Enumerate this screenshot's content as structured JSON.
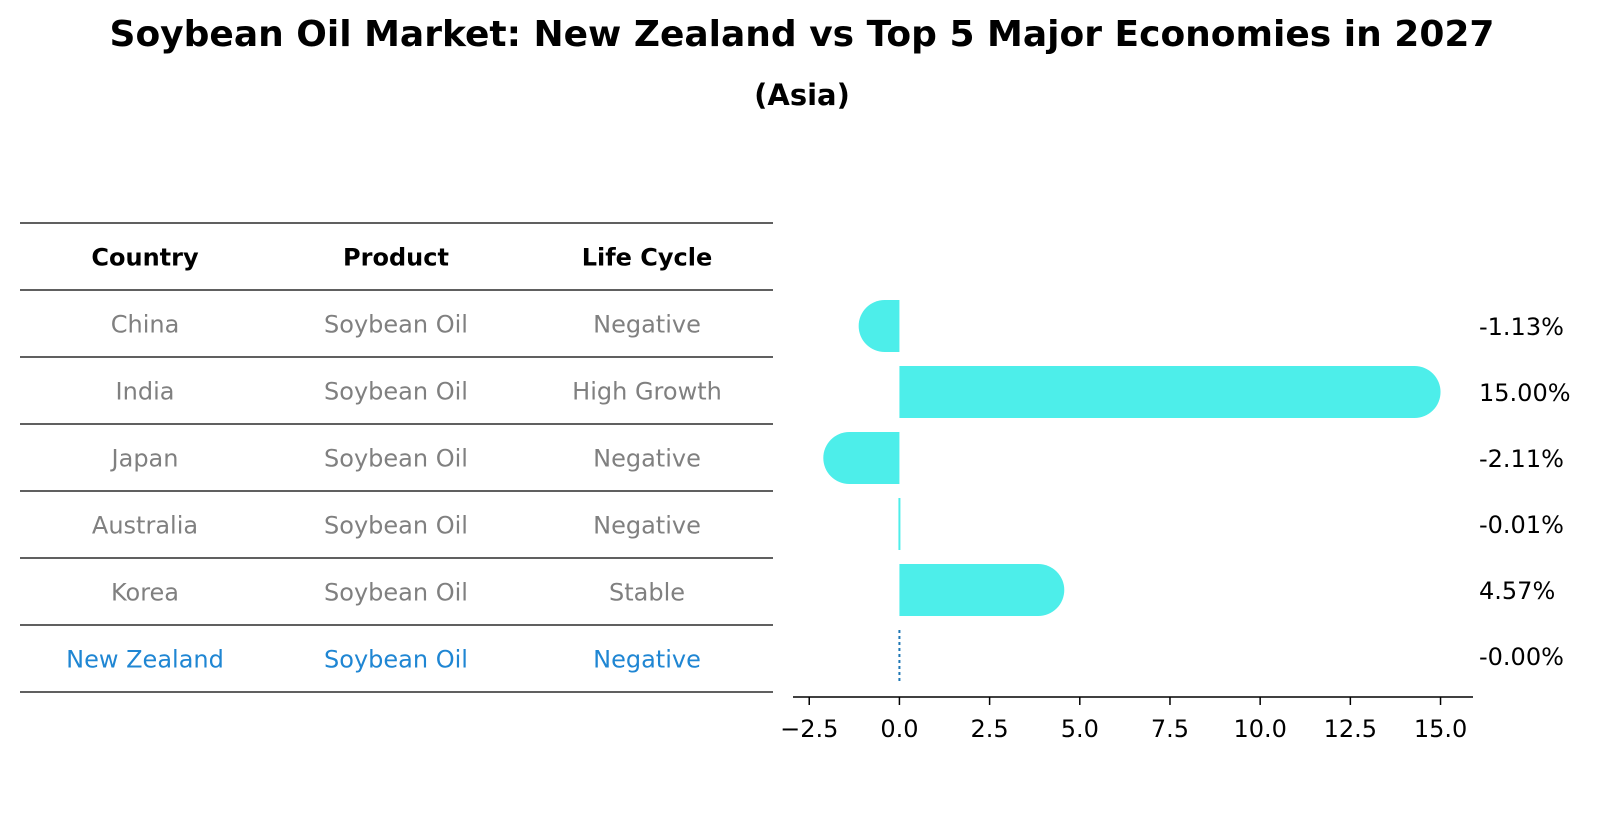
{
  "title": "Soybean Oil Market: New Zealand vs Top 5 Major Economies in 2027",
  "subtitle": "(Asia)",
  "table": {
    "headers": [
      "Country",
      "Product",
      "Life Cycle"
    ],
    "rows": [
      {
        "country": "China",
        "product": "Soybean Oil",
        "life_cycle": "Negative",
        "highlight": false
      },
      {
        "country": "India",
        "product": "Soybean Oil",
        "life_cycle": "High Growth",
        "highlight": false
      },
      {
        "country": "Japan",
        "product": "Soybean Oil",
        "life_cycle": "Negative",
        "highlight": false
      },
      {
        "country": "Australia",
        "product": "Soybean Oil",
        "life_cycle": "Negative",
        "highlight": false
      },
      {
        "country": "Korea",
        "product": "Soybean Oil",
        "life_cycle": "Stable",
        "highlight": false
      },
      {
        "country": "New Zealand",
        "product": "Soybean Oil",
        "life_cycle": "Negative",
        "highlight": true
      }
    ]
  },
  "colors": {
    "bar": "#4deeea",
    "highlight_text": "#1f86d3",
    "muted_text": "#808080",
    "zero_line": "#1f77b4"
  },
  "chart_data": {
    "type": "bar",
    "orientation": "horizontal",
    "categories": [
      "China",
      "India",
      "Japan",
      "Australia",
      "Korea",
      "New Zealand"
    ],
    "values": [
      -1.13,
      15.0,
      -2.11,
      -0.01,
      4.57,
      -0.0
    ],
    "value_labels": [
      "-1.13%",
      "15.00%",
      "-2.11%",
      "-0.01%",
      "4.57%",
      "-0.00%"
    ],
    "xticks": [
      -2.5,
      0.0,
      2.5,
      5.0,
      7.5,
      10.0,
      12.5,
      15.0
    ],
    "xtick_labels": [
      "−2.5",
      "0.0",
      "2.5",
      "5.0",
      "7.5",
      "10.0",
      "12.5",
      "15.0"
    ],
    "xlim": [
      -2.95,
      15.9
    ],
    "grid": false,
    "title": "",
    "xlabel": "",
    "ylabel": ""
  }
}
